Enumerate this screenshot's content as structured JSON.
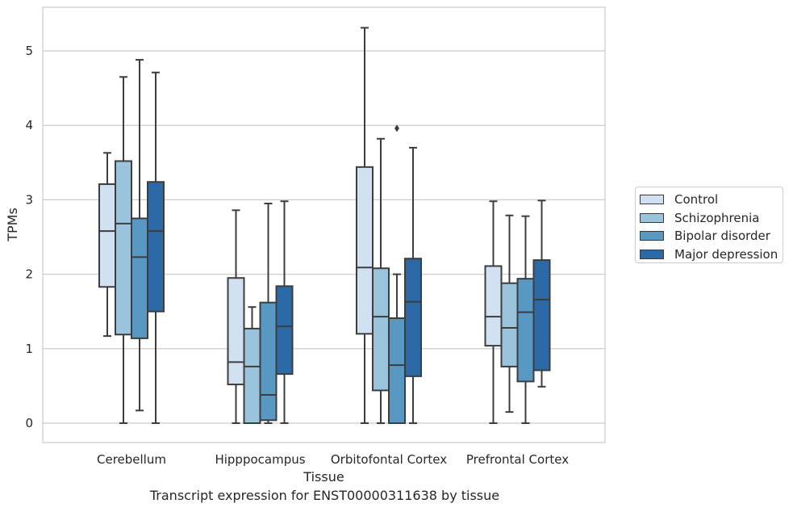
{
  "chart_data": {
    "type": "box",
    "caption": "Transcript expression for ENST00000311638 by tissue",
    "xlabel": "Tissue",
    "ylabel": "TPMs",
    "ylim": [
      -0.25,
      5.6
    ],
    "yticks": [
      0,
      1,
      2,
      3,
      4,
      5
    ],
    "grid": true,
    "legend_position": "right",
    "categories": [
      "Cerebellum",
      "Hipppocampus",
      "Orbitofontal Cortex",
      "Prefrontal Cortex"
    ],
    "series": [
      {
        "name": "Control",
        "color": "#d1e1f1",
        "boxes": [
          {
            "whislo": 1.17,
            "q1": 1.83,
            "med": 2.58,
            "q3": 3.21,
            "whishi": 3.63,
            "fliers": []
          },
          {
            "whislo": 0.0,
            "q1": 0.52,
            "med": 0.82,
            "q3": 1.95,
            "whishi": 2.86,
            "fliers": []
          },
          {
            "whislo": 0.0,
            "q1": 1.2,
            "med": 2.09,
            "q3": 3.44,
            "whishi": 5.31,
            "fliers": []
          },
          {
            "whislo": 0.0,
            "q1": 1.04,
            "med": 1.43,
            "q3": 2.11,
            "whishi": 2.98,
            "fliers": []
          }
        ]
      },
      {
        "name": "Schizophrenia",
        "color": "#9ac3dd",
        "boxes": [
          {
            "whislo": 0.0,
            "q1": 1.19,
            "med": 2.68,
            "q3": 3.52,
            "whishi": 4.65,
            "fliers": []
          },
          {
            "whislo": 0.0,
            "q1": 0.0,
            "med": 0.76,
            "q3": 1.27,
            "whishi": 1.56,
            "fliers": []
          },
          {
            "whislo": 0.0,
            "q1": 0.44,
            "med": 1.43,
            "q3": 2.08,
            "whishi": 3.82,
            "fliers": []
          },
          {
            "whislo": 0.15,
            "q1": 0.76,
            "med": 1.28,
            "q3": 1.88,
            "whishi": 2.79,
            "fliers": []
          }
        ]
      },
      {
        "name": "Bipolar disorder",
        "color": "#5899c4",
        "boxes": [
          {
            "whislo": 0.17,
            "q1": 1.14,
            "med": 2.23,
            "q3": 2.75,
            "whishi": 4.88,
            "fliers": []
          },
          {
            "whislo": 0.0,
            "q1": 0.04,
            "med": 0.38,
            "q3": 1.62,
            "whishi": 2.95,
            "fliers": []
          },
          {
            "whislo": 0.0,
            "q1": 0.0,
            "med": 0.78,
            "q3": 1.41,
            "whishi": 2.0,
            "fliers": [
              3.96
            ]
          },
          {
            "whislo": 0.0,
            "q1": 0.56,
            "med": 1.49,
            "q3": 1.94,
            "whishi": 2.78,
            "fliers": []
          }
        ]
      },
      {
        "name": "Major depression",
        "color": "#2b6aa6",
        "boxes": [
          {
            "whislo": 0.0,
            "q1": 1.5,
            "med": 2.58,
            "q3": 3.24,
            "whishi": 4.71,
            "fliers": []
          },
          {
            "whislo": 0.0,
            "q1": 0.66,
            "med": 1.3,
            "q3": 1.84,
            "whishi": 2.98,
            "fliers": []
          },
          {
            "whislo": 0.0,
            "q1": 0.63,
            "med": 1.63,
            "q3": 2.21,
            "whishi": 3.7,
            "fliers": []
          },
          {
            "whislo": 0.49,
            "q1": 0.71,
            "med": 1.66,
            "q3": 2.19,
            "whishi": 2.99,
            "fliers": []
          }
        ]
      }
    ]
  }
}
